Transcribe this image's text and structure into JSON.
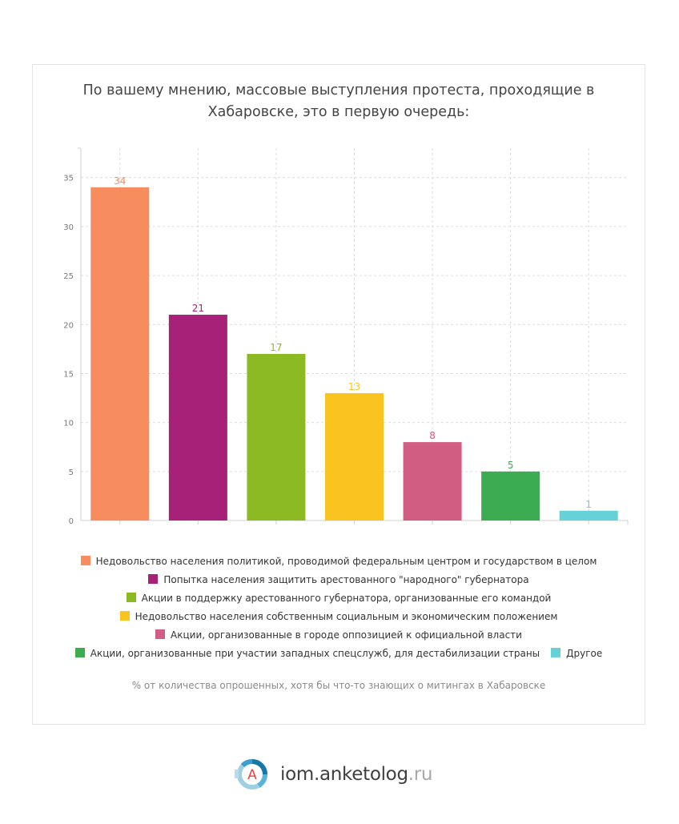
{
  "chart_data": {
    "type": "bar",
    "title": "По вашему мнению, массовые выступления протеста, проходящие в Хабаровске, это в первую очередь:",
    "title_lines": [
      "По вашему мнению, массовые выступления протеста, проходящие в",
      "Хабаровске, это в первую очередь:"
    ],
    "categories": [
      "Недовольство населения политикой, проводимой федеральным центром и государством в целом",
      "Попытка населения защитить арестованного \"народного\" губернатора",
      "Акции в поддержку арестованного губернатора, организованные его командой",
      "Недовольство населения собственным социальным и экономическим положением",
      "Акции, организованные в городе оппозицией к официальной власти",
      "Акции, организованные при участии западных спецслужб, для дестабилизации страны",
      "Другое"
    ],
    "values": [
      34,
      21,
      17,
      13,
      8,
      5,
      1
    ],
    "colors": [
      "#f78c5f",
      "#a82179",
      "#8cba22",
      "#fac420",
      "#d15d82",
      "#3cac52",
      "#66d1d6"
    ],
    "ylim": [
      0,
      38
    ],
    "yticks": [
      0,
      5,
      10,
      15,
      20,
      25,
      30,
      35
    ],
    "xlabel": "",
    "ylabel": "",
    "grid": true,
    "legend_position": "bottom",
    "footnote": "% от количества опрошенных, хотя бы что-то знающих о митингах в Хабаровске"
  },
  "legend_rows": [
    [
      0
    ],
    [
      1
    ],
    [
      2
    ],
    [
      3
    ],
    [
      4
    ],
    [
      5,
      6
    ]
  ],
  "brand": {
    "name": "iom.anketolog",
    "tld": ".ru",
    "logo_letter": "A"
  }
}
